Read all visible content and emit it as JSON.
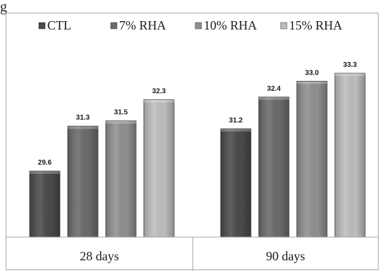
{
  "page": {
    "top_fragment": "g"
  },
  "chart_data": {
    "type": "bar",
    "categories": [
      "28 days",
      "90 days"
    ],
    "series": [
      {
        "name": "CTL",
        "values": [
          29.6,
          31.2
        ],
        "color": "#4a4a4a"
      },
      {
        "name": "7% RHA",
        "values": [
          31.3,
          32.4
        ],
        "color": "#6a6a6a"
      },
      {
        "name": "10% RHA",
        "values": [
          31.5,
          33.0
        ],
        "color": "#8f8f8f"
      },
      {
        "name": "15% RHA",
        "values": [
          32.3,
          33.3
        ],
        "color": "#bdbdbd"
      }
    ],
    "value_labels": [
      [
        "29.6",
        "31.2"
      ],
      [
        "31.3",
        "32.4"
      ],
      [
        "31.5",
        "33.0"
      ],
      [
        "32.3",
        "33.3"
      ]
    ],
    "title": "",
    "xlabel": "",
    "ylabel": "",
    "ylim": [
      27.1,
      34.5
    ],
    "grid": false,
    "legend_position": "top"
  }
}
